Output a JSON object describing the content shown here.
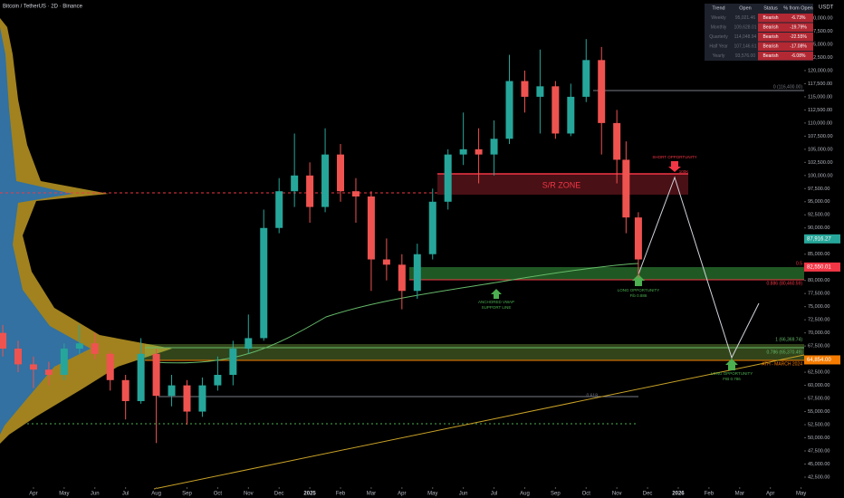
{
  "chart_data": {
    "type": "candlestick",
    "title": "Bitcoin / TetherUS · 2D · Binance",
    "currency": "USDT",
    "up_color": "#26a69a",
    "down_color": "#ef5350",
    "x": [
      -1,
      -0.5,
      0,
      0.5,
      1,
      1.5,
      2,
      2.5,
      3,
      3.5,
      4,
      4.5,
      5,
      5.5,
      6,
      6.5,
      7,
      7.5,
      8,
      8.5,
      9,
      9.5,
      10,
      10.5,
      11,
      11.5,
      12,
      12.5,
      13,
      13.5,
      14,
      14.5,
      15,
      15.5,
      16,
      16.5,
      17,
      17.5,
      18,
      18.5,
      19,
      19.3,
      19.7
    ],
    "open": [
      70000,
      67000,
      64000,
      63000,
      62000,
      67000,
      68000,
      66000,
      61000,
      57000,
      66000,
      58000,
      60000,
      55000,
      60000,
      62000,
      67000,
      69000,
      90000,
      97000,
      100000,
      94000,
      104000,
      97000,
      96000,
      84000,
      83000,
      78000,
      85000,
      95000,
      104000,
      105000,
      104000,
      107000,
      118000,
      115000,
      117000,
      108000,
      115000,
      122000,
      110000,
      103000,
      92000
    ],
    "high": [
      71500,
      68500,
      65500,
      64500,
      68000,
      71500,
      70000,
      66500,
      62000,
      69000,
      67000,
      62000,
      61000,
      61500,
      65500,
      68500,
      73500,
      93500,
      99500,
      108000,
      102500,
      109000,
      106000,
      99500,
      97000,
      88000,
      85000,
      87000,
      97500,
      105000,
      112000,
      109000,
      110500,
      123000,
      120000,
      124000,
      118000,
      117500,
      126000,
      124500,
      112500,
      106500,
      93000
    ],
    "low": [
      65500,
      62500,
      59500,
      60000,
      61000,
      66000,
      65000,
      59000,
      53500,
      56500,
      49000,
      56000,
      52500,
      54000,
      59000,
      60000,
      66000,
      68500,
      89000,
      94000,
      91000,
      93000,
      95000,
      91000,
      78000,
      80000,
      74500,
      76500,
      84000,
      93500,
      102000,
      98500,
      100000,
      106000,
      112000,
      108000,
      107000,
      107500,
      114000,
      104000,
      98500,
      89000,
      80500
    ],
    "close": [
      67000,
      64000,
      63000,
      62000,
      67000,
      68000,
      66000,
      61000,
      57000,
      66000,
      58000,
      60000,
      55000,
      60000,
      62000,
      67000,
      69000,
      90000,
      97000,
      100000,
      94000,
      104000,
      97000,
      96000,
      84000,
      83000,
      78000,
      85000,
      95000,
      104000,
      105000,
      104000,
      107000,
      118000,
      115000,
      117000,
      108000,
      115000,
      122000,
      110000,
      103000,
      92000,
      84000
    ],
    "xlim": [
      -1.09,
      25.1
    ],
    "xticks": [
      {
        "value": 0,
        "label": "Apr"
      },
      {
        "value": 1,
        "label": "May"
      },
      {
        "value": 2,
        "label": "Jun"
      },
      {
        "value": 3,
        "label": "Jul"
      },
      {
        "value": 4,
        "label": "Aug"
      },
      {
        "value": 5,
        "label": "Sep"
      },
      {
        "value": 6,
        "label": "Oct"
      },
      {
        "value": 7,
        "label": "Nov"
      },
      {
        "value": 8,
        "label": "Dec"
      },
      {
        "value": 9,
        "label": "2025"
      },
      {
        "value": 10,
        "label": "Feb"
      },
      {
        "value": 11,
        "label": "Mar"
      },
      {
        "value": 12,
        "label": "Apr"
      },
      {
        "value": 13,
        "label": "May"
      },
      {
        "value": 14,
        "label": "Jun"
      },
      {
        "value": 15,
        "label": "Jul"
      },
      {
        "value": 16,
        "label": "Aug"
      },
      {
        "value": 17,
        "label": "Sep"
      },
      {
        "value": 18,
        "label": "Oct"
      },
      {
        "value": 19,
        "label": "Nov"
      },
      {
        "value": 20,
        "label": "Dec"
      },
      {
        "value": 21,
        "label": "2026"
      },
      {
        "value": 22,
        "label": "Feb"
      },
      {
        "value": 23,
        "label": "Mar"
      },
      {
        "value": 24,
        "label": "Apr"
      },
      {
        "value": 25,
        "label": "May"
      }
    ],
    "ylim": [
      40600,
      133450
    ],
    "yticks": [
      {
        "value": 130000,
        "label": "130,000.00"
      },
      {
        "value": 127500,
        "label": "127,500.00"
      },
      {
        "value": 125000,
        "label": "125,000.00"
      },
      {
        "value": 122500,
        "label": "122,500.00"
      },
      {
        "value": 120000,
        "label": "120,000.00"
      },
      {
        "value": 117500,
        "label": "117,500.00"
      },
      {
        "value": 115000,
        "label": "115,000.00"
      },
      {
        "value": 112500,
        "label": "112,500.00"
      },
      {
        "value": 110000,
        "label": "110,000.00"
      },
      {
        "value": 107500,
        "label": "107,500.00"
      },
      {
        "value": 105000,
        "label": "105,000.00"
      },
      {
        "value": 102500,
        "label": "102,500.00"
      },
      {
        "value": 100000,
        "label": "100,000.00"
      },
      {
        "value": 97500,
        "label": "97,500.00"
      },
      {
        "value": 95000,
        "label": "95,000.00"
      },
      {
        "value": 92500,
        "label": "92,500.00"
      },
      {
        "value": 90000,
        "label": "90,000.00"
      },
      {
        "value": 87500,
        "label": "87,500.00"
      },
      {
        "value": 85000,
        "label": "85,000.00"
      },
      {
        "value": 82500,
        "label": "82,500.00"
      },
      {
        "value": 80000,
        "label": "80,000.00"
      },
      {
        "value": 77500,
        "label": "77,500.00"
      },
      {
        "value": 75000,
        "label": "75,000.00"
      },
      {
        "value": 72500,
        "label": "72,500.00"
      },
      {
        "value": 70000,
        "label": "70,000.00"
      },
      {
        "value": 67500,
        "label": "67,500.00"
      },
      {
        "value": 65000,
        "label": "65,000.00"
      },
      {
        "value": 62500,
        "label": "62,500.00"
      },
      {
        "value": 60000,
        "label": "60,000.00"
      },
      {
        "value": 57500,
        "label": "57,500.00"
      },
      {
        "value": 55000,
        "label": "55,000.00"
      },
      {
        "value": 52500,
        "label": "52,500.00"
      },
      {
        "value": 50000,
        "label": "50,000.00"
      },
      {
        "value": 47500,
        "label": "47,500.00"
      },
      {
        "value": 45000,
        "label": "45,000.00"
      },
      {
        "value": 42500,
        "label": "42,500.00"
      }
    ],
    "price_labels": [
      {
        "value": 87916.27,
        "label": "87,916.27",
        "color": "#26a69a"
      },
      {
        "value": 82550.01,
        "label": "82,550.01",
        "color": "#f23645"
      },
      {
        "value": 64854.0,
        "label": "64,854.00",
        "color": "#f57c00"
      }
    ],
    "annotations": [
      "S/R ZONE",
      "SHORT OPPORTUNITY",
      "100K",
      "LONG OPPORTUNITY",
      "Fib 0.886",
      "ANCHORED VWAP",
      "SUPPORT LINE",
      "LONG OPPORTUNITY",
      "FIB 0.786",
      "0 (116,400.00)",
      "0.886 (80,460.59)",
      "1 (66,369.74)",
      "0.786 (65,370.49)",
      "ATH - MARCH 2024",
      "0.618",
      "0.5"
    ]
  },
  "table": {
    "headers": [
      "Trend",
      "Open",
      "Status",
      "% from Open"
    ],
    "rows": [
      [
        "Weekly",
        "95,021.46",
        "Bearish",
        "-6.73%"
      ],
      [
        "Monthly",
        "109,628.01",
        "Bearish",
        "-19.79%"
      ],
      [
        "Quarterly",
        "114,048.94",
        "Bearish",
        "-22.55%"
      ],
      [
        "Half Year",
        "107,146.61",
        "Bearish",
        "-17.08%"
      ],
      [
        "Yearly",
        "93,576.00",
        "Bearish",
        "-6.08%"
      ]
    ]
  }
}
